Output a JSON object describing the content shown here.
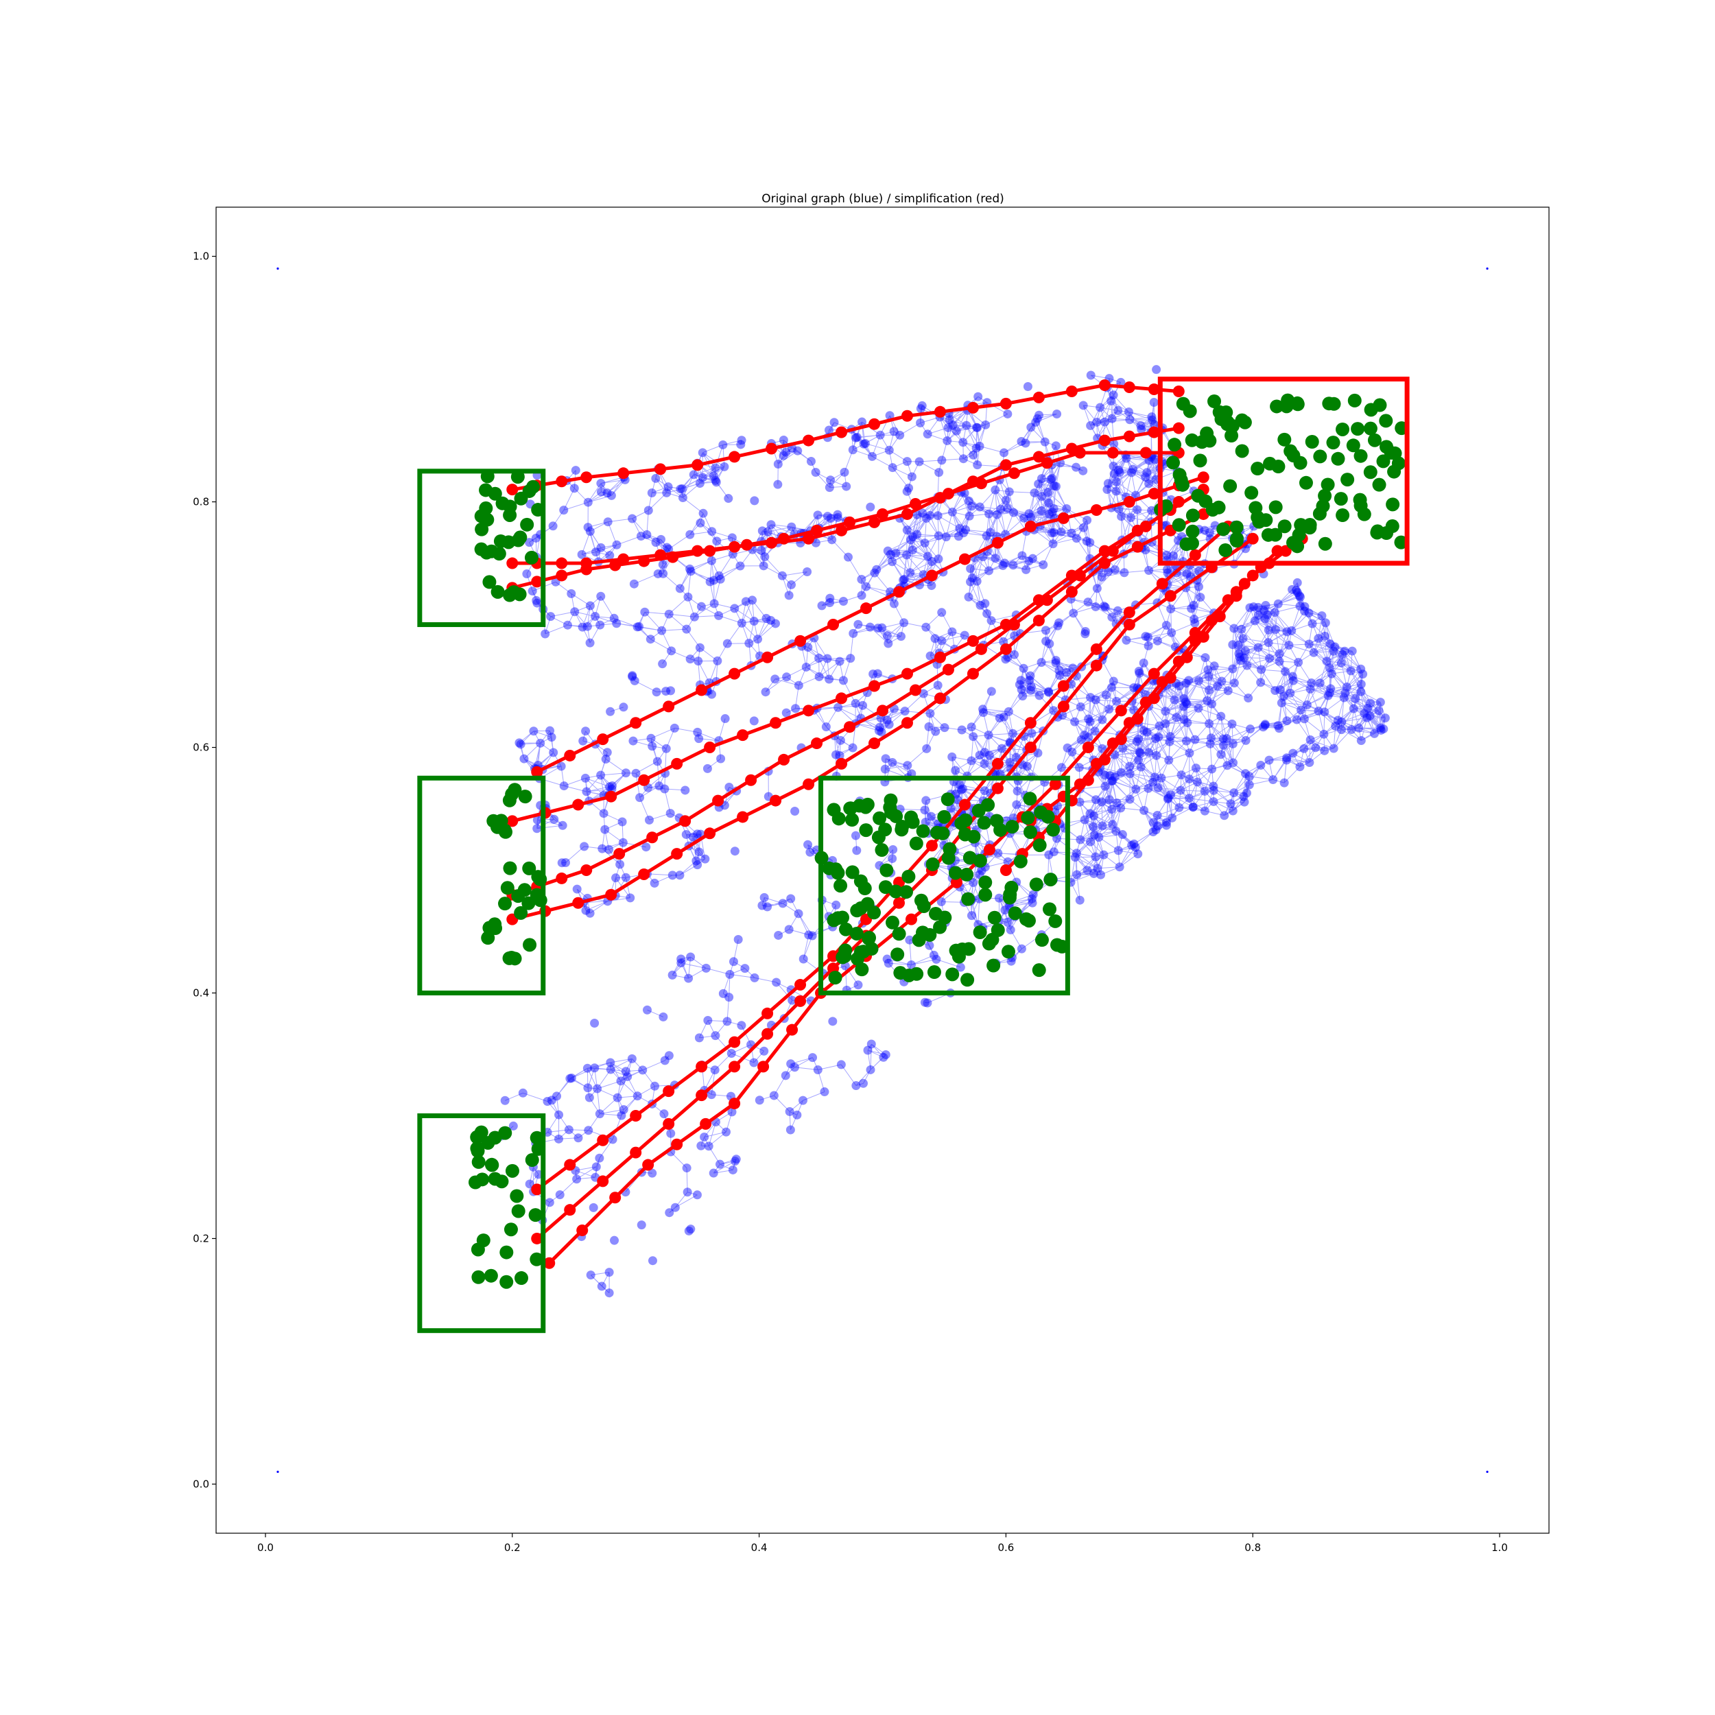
{
  "chart_data": {
    "type": "scatter",
    "title": "Original graph (blue) / simplification (red)",
    "xlabel": "",
    "ylabel": "",
    "xlim": [
      -0.04,
      1.04
    ],
    "ylim": [
      -0.04,
      1.04
    ],
    "x_ticks": [
      "0.0",
      "0.2",
      "0.4",
      "0.6",
      "0.8",
      "1.0"
    ],
    "y_ticks": [
      "0.0",
      "0.2",
      "0.4",
      "0.6",
      "0.8",
      "1.0"
    ],
    "grid": false,
    "corner_points": [
      [
        0.01,
        0.01
      ],
      [
        0.99,
        0.01
      ],
      [
        0.01,
        0.99
      ],
      [
        0.99,
        0.99
      ]
    ],
    "colors": {
      "original_graph": "#0000ff",
      "simplification": "#ff0000",
      "source_regions": "#008000",
      "target_region": "#ff0000"
    },
    "regions": [
      {
        "name": "source-top",
        "color": "green",
        "x": [
          0.125,
          0.225
        ],
        "y": [
          0.7,
          0.825
        ]
      },
      {
        "name": "source-middle",
        "color": "green",
        "x": [
          0.125,
          0.225
        ],
        "y": [
          0.4,
          0.575
        ]
      },
      {
        "name": "source-bottom",
        "color": "green",
        "x": [
          0.125,
          0.225
        ],
        "y": [
          0.125,
          0.3
        ]
      },
      {
        "name": "source-center",
        "color": "green",
        "x": [
          0.45,
          0.65
        ],
        "y": [
          0.4,
          0.575
        ]
      },
      {
        "name": "target",
        "color": "red",
        "x": [
          0.725,
          0.925
        ],
        "y": [
          0.75,
          0.9
        ]
      }
    ],
    "simplified_paths": [
      {
        "name": "path-1",
        "points": [
          [
            0.2,
            0.81
          ],
          [
            0.26,
            0.82
          ],
          [
            0.35,
            0.83
          ],
          [
            0.44,
            0.85
          ],
          [
            0.52,
            0.87
          ],
          [
            0.6,
            0.88
          ],
          [
            0.68,
            0.895
          ],
          [
            0.74,
            0.89
          ]
        ]
      },
      {
        "name": "path-2",
        "points": [
          [
            0.2,
            0.75
          ],
          [
            0.26,
            0.75
          ],
          [
            0.35,
            0.76
          ],
          [
            0.44,
            0.77
          ],
          [
            0.52,
            0.79
          ],
          [
            0.6,
            0.83
          ],
          [
            0.68,
            0.85
          ],
          [
            0.74,
            0.86
          ]
        ]
      },
      {
        "name": "path-3",
        "points": [
          [
            0.2,
            0.73
          ],
          [
            0.26,
            0.745
          ],
          [
            0.33,
            0.755
          ],
          [
            0.42,
            0.77
          ],
          [
            0.5,
            0.79
          ],
          [
            0.58,
            0.815
          ],
          [
            0.66,
            0.84
          ],
          [
            0.74,
            0.84
          ]
        ]
      },
      {
        "name": "path-4",
        "points": [
          [
            0.22,
            0.58
          ],
          [
            0.3,
            0.62
          ],
          [
            0.38,
            0.66
          ],
          [
            0.46,
            0.7
          ],
          [
            0.54,
            0.74
          ],
          [
            0.62,
            0.78
          ],
          [
            0.7,
            0.8
          ],
          [
            0.76,
            0.82
          ]
        ]
      },
      {
        "name": "path-5",
        "points": [
          [
            0.2,
            0.54
          ],
          [
            0.28,
            0.56
          ],
          [
            0.36,
            0.6
          ],
          [
            0.44,
            0.63
          ],
          [
            0.52,
            0.66
          ],
          [
            0.6,
            0.7
          ],
          [
            0.68,
            0.76
          ],
          [
            0.76,
            0.81
          ]
        ]
      },
      {
        "name": "path-6",
        "points": [
          [
            0.2,
            0.48
          ],
          [
            0.26,
            0.5
          ],
          [
            0.34,
            0.54
          ],
          [
            0.42,
            0.59
          ],
          [
            0.5,
            0.63
          ],
          [
            0.58,
            0.68
          ],
          [
            0.66,
            0.74
          ],
          [
            0.74,
            0.8
          ]
        ]
      },
      {
        "name": "path-7",
        "points": [
          [
            0.2,
            0.46
          ],
          [
            0.28,
            0.48
          ],
          [
            0.36,
            0.53
          ],
          [
            0.44,
            0.57
          ],
          [
            0.52,
            0.62
          ],
          [
            0.6,
            0.68
          ],
          [
            0.68,
            0.75
          ],
          [
            0.76,
            0.79
          ]
        ]
      },
      {
        "name": "path-8",
        "points": [
          [
            0.22,
            0.24
          ],
          [
            0.3,
            0.3
          ],
          [
            0.38,
            0.36
          ],
          [
            0.46,
            0.43
          ],
          [
            0.54,
            0.52
          ],
          [
            0.62,
            0.62
          ],
          [
            0.7,
            0.71
          ],
          [
            0.78,
            0.78
          ]
        ]
      },
      {
        "name": "path-9",
        "points": [
          [
            0.22,
            0.2
          ],
          [
            0.3,
            0.27
          ],
          [
            0.38,
            0.34
          ],
          [
            0.46,
            0.42
          ],
          [
            0.54,
            0.5
          ],
          [
            0.62,
            0.6
          ],
          [
            0.7,
            0.7
          ],
          [
            0.8,
            0.77
          ]
        ]
      },
      {
        "name": "path-10",
        "points": [
          [
            0.23,
            0.18
          ],
          [
            0.31,
            0.26
          ],
          [
            0.38,
            0.31
          ],
          [
            0.45,
            0.4
          ],
          [
            0.56,
            0.49
          ],
          [
            0.64,
            0.57
          ],
          [
            0.72,
            0.66
          ],
          [
            0.82,
            0.76
          ]
        ]
      },
      {
        "name": "path-11",
        "points": [
          [
            0.62,
            0.54
          ],
          [
            0.66,
            0.57
          ],
          [
            0.7,
            0.62
          ],
          [
            0.74,
            0.67
          ],
          [
            0.78,
            0.72
          ],
          [
            0.82,
            0.76
          ]
        ]
      },
      {
        "name": "path-12",
        "points": [
          [
            0.6,
            0.5
          ],
          [
            0.64,
            0.54
          ],
          [
            0.68,
            0.59
          ],
          [
            0.72,
            0.64
          ],
          [
            0.76,
            0.69
          ],
          [
            0.8,
            0.74
          ],
          [
            0.84,
            0.77
          ]
        ]
      }
    ]
  }
}
